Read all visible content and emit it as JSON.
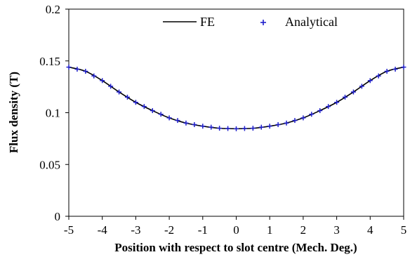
{
  "chart_data": {
    "type": "line",
    "title": "",
    "xlabel": "Position with respect to slot centre (Mech. Deg.)",
    "ylabel": "Flux density (T)",
    "xlim": [
      -5,
      5
    ],
    "ylim": [
      0,
      0.2
    ],
    "xticks": [
      "-5",
      "-4",
      "-3",
      "-2",
      "-1",
      "0",
      "1",
      "2",
      "3",
      "4",
      "5"
    ],
    "yticks": [
      "0",
      "0.05",
      "0.1",
      "0.15",
      "0.2"
    ],
    "grid": false,
    "legend": "top",
    "series": [
      {
        "name": "FE",
        "style": "line",
        "color": "#000000",
        "x": [
          -5,
          -4.5,
          -4,
          -3.5,
          -3,
          -2.5,
          -2,
          -1.5,
          -1,
          -0.5,
          0,
          0.5,
          1,
          1.5,
          2,
          2.5,
          3,
          3.5,
          4,
          4.5,
          5
        ],
        "y": [
          0.144,
          0.14,
          0.131,
          0.12,
          0.11,
          0.102,
          0.095,
          0.09,
          0.087,
          0.085,
          0.0845,
          0.085,
          0.087,
          0.09,
          0.095,
          0.102,
          0.11,
          0.12,
          0.131,
          0.14,
          0.144
        ]
      },
      {
        "name": "Analytical",
        "style": "markers",
        "marker": "plus",
        "color": "#1f1fcc",
        "x": [
          -5,
          -4.5,
          -4,
          -3.5,
          -3,
          -2.5,
          -2,
          -1.5,
          -1,
          -0.5,
          0,
          0.5,
          1,
          1.5,
          2,
          2.5,
          3,
          3.5,
          4,
          4.5,
          5
        ],
        "y": [
          0.144,
          0.14,
          0.131,
          0.12,
          0.11,
          0.102,
          0.095,
          0.09,
          0.087,
          0.085,
          0.0845,
          0.085,
          0.087,
          0.09,
          0.095,
          0.102,
          0.11,
          0.12,
          0.131,
          0.14,
          0.144
        ]
      }
    ]
  }
}
